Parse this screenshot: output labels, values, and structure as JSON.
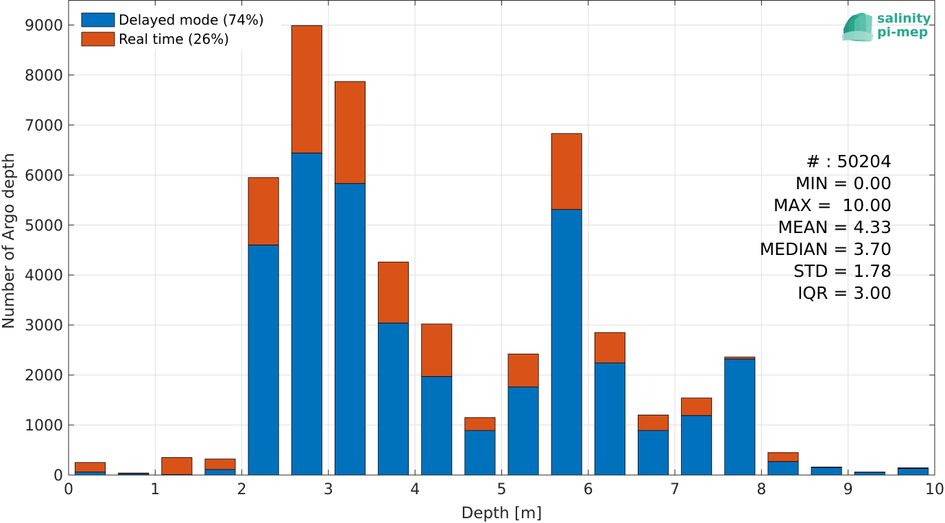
{
  "chart_data": {
    "type": "bar",
    "stacked": true,
    "xlabel": "Depth [m]",
    "ylabel": "Number of Argo depth",
    "xlim": [
      0,
      10
    ],
    "ylim": [
      0,
      9500
    ],
    "xticks": [
      0,
      1,
      2,
      3,
      4,
      5,
      6,
      7,
      8,
      9,
      10
    ],
    "yticks": [
      0,
      1000,
      2000,
      3000,
      4000,
      5000,
      6000,
      7000,
      8000,
      9000
    ],
    "grid": true,
    "legend_position": "top-left",
    "bin_centers": [
      0.25,
      0.75,
      1.25,
      1.75,
      2.25,
      2.75,
      3.25,
      3.75,
      4.25,
      4.75,
      5.25,
      5.75,
      6.25,
      6.75,
      7.25,
      7.75,
      8.25,
      8.75,
      9.25,
      9.75
    ],
    "series": [
      {
        "name": "Delayed mode (74%)",
        "color": "#0072BD",
        "values": [
          60,
          25,
          10,
          110,
          4600,
          6440,
          5830,
          3040,
          1970,
          890,
          1760,
          5310,
          2240,
          890,
          1190,
          2320,
          270,
          150,
          55,
          130
        ]
      },
      {
        "name": "Real time (26%)",
        "color": "#D95319",
        "values": [
          190,
          15,
          340,
          210,
          1350,
          2550,
          2040,
          1220,
          1050,
          260,
          660,
          1520,
          610,
          310,
          350,
          40,
          180,
          10,
          5,
          15
        ]
      }
    ]
  },
  "stats": [
    "# : 50204",
    "MIN = 0.00",
    "MAX =  10.00",
    "MEAN = 4.33",
    "MEDIAN = 3.70",
    "STD = 1.78",
    "IQR = 3.00"
  ],
  "logo": {
    "line1": "salinity",
    "line2": "pi-mep",
    "color": "#2aa88f"
  }
}
